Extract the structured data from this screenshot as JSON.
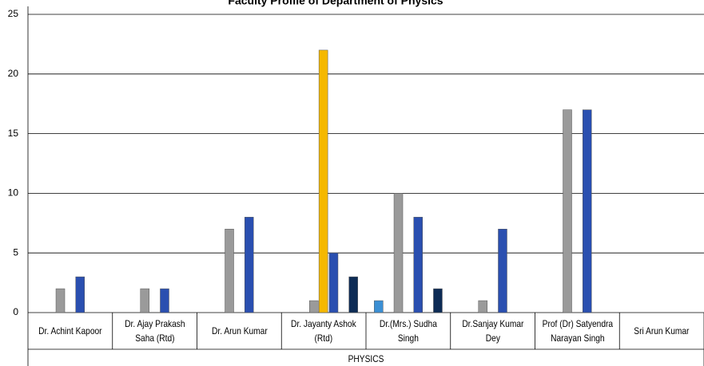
{
  "chart_data": {
    "type": "bar",
    "title": "Faculty Profile of Department of Physics",
    "group_label": "PHYSICS",
    "categories": [
      "Dr. Achint Kapoor",
      "Dr. Ajay Prakash Saha (Rtd)",
      "Dr. Arun Kumar",
      "Dr. Jayanty Ashok (Rtd)",
      "Dr.(Mrs.) Sudha Singh",
      "Dr.Sanjay Kumar Dey",
      "Prof (Dr) Satyendra Narayan Singh",
      "Sri Arun Kumar"
    ],
    "series": [
      {
        "color": "#3b8fd4",
        "values": [
          null,
          null,
          null,
          null,
          1,
          null,
          null,
          null
        ]
      },
      {
        "color": "#9a9a9a",
        "values": [
          2,
          2,
          7,
          1,
          10,
          1,
          17,
          null
        ]
      },
      {
        "color": "#f5b800",
        "values": [
          null,
          null,
          null,
          22,
          null,
          null,
          null,
          null
        ]
      },
      {
        "color": "#2a4fb0",
        "values": [
          3,
          2,
          8,
          5,
          8,
          7,
          17,
          null
        ]
      },
      {
        "color": "#0d2b55",
        "values": [
          null,
          null,
          null,
          3,
          2,
          null,
          null,
          null
        ]
      }
    ],
    "ylim": [
      0,
      25
    ],
    "yticks": [
      0,
      5,
      10,
      15,
      20,
      25
    ],
    "grid": true
  }
}
